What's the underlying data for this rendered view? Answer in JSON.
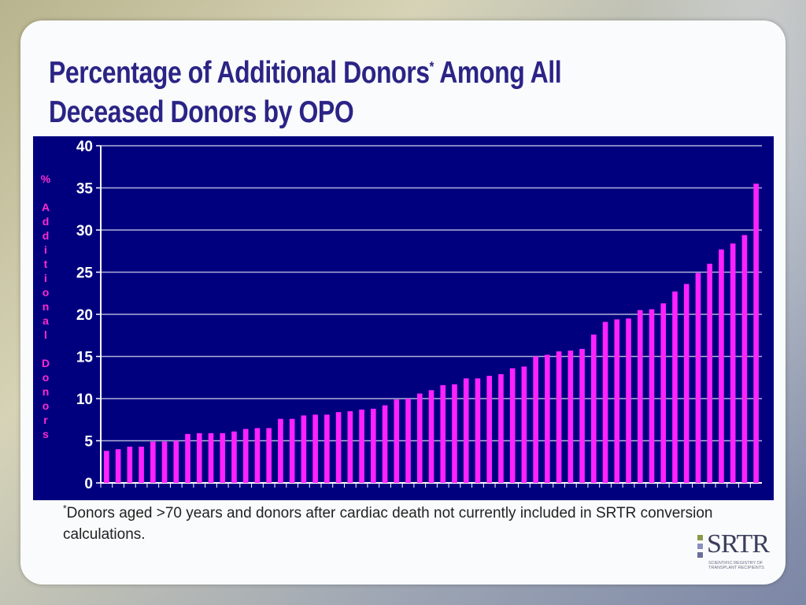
{
  "slide": {
    "title_part1": "Percentage of Additional Donors",
    "title_sup": "*",
    "title_part2": " Among All Deceased Donors by OPO",
    "footnote_sup": "*",
    "footnote_text": "Donors  aged >70 years and donors after cardiac death not currently included in SRTR conversion calculations.",
    "logo": {
      "wordmark": "SRTR",
      "subtitle": "SCIENTIFIC REGISTRY OF TRANSPLANT RECIPIENTS"
    }
  },
  "colors": {
    "title": "#2b2486",
    "chart_background": "#00007f",
    "bar": "#ff22ff",
    "axis_text": "#ffffff",
    "ylabel": "#ff2bd0",
    "gridline": "#b0b0d8"
  },
  "chart_data": {
    "type": "bar",
    "title": "",
    "xlabel": "",
    "ylabel": "% Additional Donors",
    "ylim": [
      0,
      40
    ],
    "yticks": [
      0,
      5,
      10,
      15,
      20,
      25,
      30,
      35,
      40
    ],
    "grid": true,
    "values": [
      3.8,
      4.0,
      4.3,
      4.3,
      4.9,
      4.9,
      5.0,
      5.8,
      5.9,
      5.9,
      5.9,
      6.1,
      6.4,
      6.5,
      6.5,
      7.6,
      7.6,
      8.0,
      8.1,
      8.1,
      8.4,
      8.5,
      8.7,
      8.8,
      9.2,
      9.9,
      10.0,
      10.6,
      11.0,
      11.6,
      11.7,
      12.4,
      12.4,
      12.7,
      12.9,
      13.6,
      13.8,
      15.0,
      15.2,
      15.6,
      15.7,
      15.9,
      17.6,
      19.1,
      19.4,
      19.5,
      20.5,
      20.6,
      21.3,
      22.7,
      23.6,
      24.9,
      26.0,
      27.7,
      28.4,
      29.4,
      35.5
    ]
  }
}
